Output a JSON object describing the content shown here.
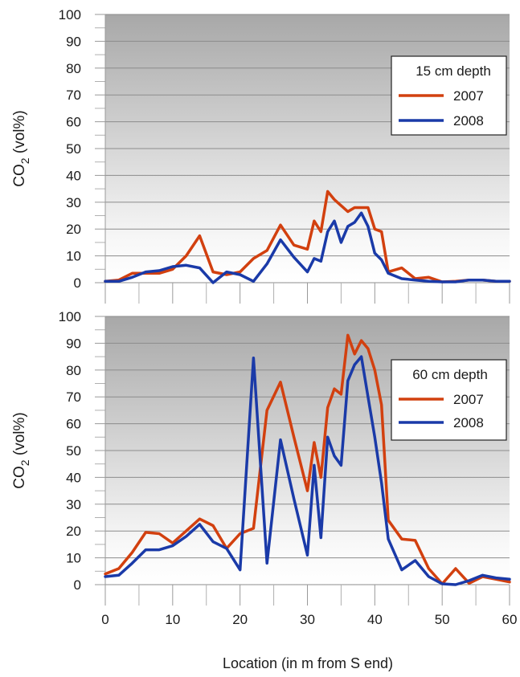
{
  "chart_data": [
    {
      "type": "line",
      "legend_title": "15 cm depth",
      "ylabel_main": "CO",
      "ylabel_sub": "2",
      "ylabel_tail": " (vol%)",
      "ylim": [
        0,
        100
      ],
      "yticks": [
        "0",
        "10",
        "20",
        "30",
        "40",
        "50",
        "60",
        "70",
        "80",
        "90",
        "100"
      ],
      "legend_position": "top-right",
      "background": "vertical gradient, dark gray at top to white at bottom",
      "series": [
        {
          "name": "2007",
          "color": "#d2400f",
          "x": [
            0,
            2,
            4,
            6,
            8,
            10,
            12,
            14,
            16,
            18,
            20,
            22,
            24,
            26,
            28,
            30,
            31,
            32,
            33,
            34,
            36,
            37,
            38,
            39,
            40,
            41,
            42,
            44,
            46,
            48,
            50,
            52,
            54,
            56,
            58,
            60
          ],
          "y": [
            0.5,
            1,
            3.5,
            3.5,
            3.5,
            5,
            10,
            17.5,
            4,
            3,
            4,
            9,
            12,
            21.5,
            14,
            12.5,
            23,
            19,
            34,
            31,
            26.5,
            28,
            28,
            28,
            20,
            19,
            4,
            5.5,
            1.5,
            2,
            0.3,
            0.5,
            1,
            1,
            0.5,
            0.5
          ]
        },
        {
          "name": "2008",
          "color": "#1a3aa8",
          "x": [
            0,
            2,
            4,
            6,
            8,
            10,
            12,
            14,
            16,
            18,
            20,
            22,
            24,
            26,
            28,
            30,
            31,
            32,
            33,
            34,
            35,
            36,
            37,
            38,
            39,
            40,
            41,
            42,
            44,
            46,
            48,
            50,
            52,
            54,
            56,
            58,
            60
          ],
          "y": [
            0.5,
            0.5,
            2,
            4,
            4.5,
            6,
            6.5,
            5.5,
            0,
            4,
            3,
            0.5,
            7,
            16,
            9.5,
            4,
            9,
            8,
            19,
            23,
            15,
            21,
            22.5,
            26,
            21,
            11,
            8.5,
            3.5,
            1.5,
            1,
            0.5,
            0.3,
            0.3,
            1,
            1,
            0.5,
            0.5
          ]
        }
      ]
    },
    {
      "type": "line",
      "legend_title": "60 cm depth",
      "ylabel_main": "CO",
      "ylabel_sub": "2",
      "ylabel_tail": " (vol%)",
      "xlabel": "Location (in m from S end)",
      "xlim": [
        0,
        60
      ],
      "xticks": [
        "0",
        "10",
        "20",
        "30",
        "40",
        "50",
        "60"
      ],
      "ylim": [
        0,
        100
      ],
      "yticks": [
        "0",
        "10",
        "20",
        "30",
        "40",
        "50",
        "60",
        "70",
        "80",
        "90",
        "100"
      ],
      "legend_position": "right, upper-middle",
      "background": "vertical gradient, dark gray at top to white at bottom",
      "series": [
        {
          "name": "2007",
          "color": "#d2400f",
          "x": [
            0,
            2,
            4,
            6,
            8,
            10,
            12,
            14,
            16,
            18,
            20,
            22,
            24,
            26,
            28,
            30,
            31,
            32,
            33,
            34,
            35,
            36,
            37,
            38,
            39,
            40,
            41,
            42,
            44,
            46,
            48,
            50,
            52,
            54,
            56,
            58,
            60
          ],
          "y": [
            4,
            6,
            12,
            19.5,
            19,
            15.5,
            20,
            24.5,
            22,
            13.5,
            19,
            21,
            65,
            75.5,
            55,
            35,
            53,
            40,
            66,
            73,
            71,
            93,
            86,
            91,
            88,
            80,
            67,
            24,
            17,
            16.5,
            6,
            0.3,
            6,
            0.5,
            3,
            2,
            1
          ]
        },
        {
          "name": "2008",
          "color": "#1a3aa8",
          "x": [
            0,
            2,
            4,
            6,
            8,
            10,
            12,
            14,
            16,
            18,
            20,
            22,
            24,
            26,
            28,
            30,
            31,
            32,
            33,
            34,
            35,
            36,
            37,
            38,
            39,
            40,
            41,
            42,
            44,
            46,
            48,
            50,
            52,
            54,
            56,
            58,
            60
          ],
          "y": [
            3,
            3.5,
            8,
            13,
            13,
            14.5,
            18,
            22.5,
            16,
            13.5,
            5.5,
            84.5,
            8,
            54,
            32,
            11,
            44.5,
            17.5,
            55,
            48,
            44.5,
            76,
            82,
            85,
            70,
            55,
            38,
            17,
            5.5,
            9,
            3,
            0.3,
            0,
            1.5,
            3.5,
            2.5,
            2
          ]
        }
      ]
    }
  ]
}
